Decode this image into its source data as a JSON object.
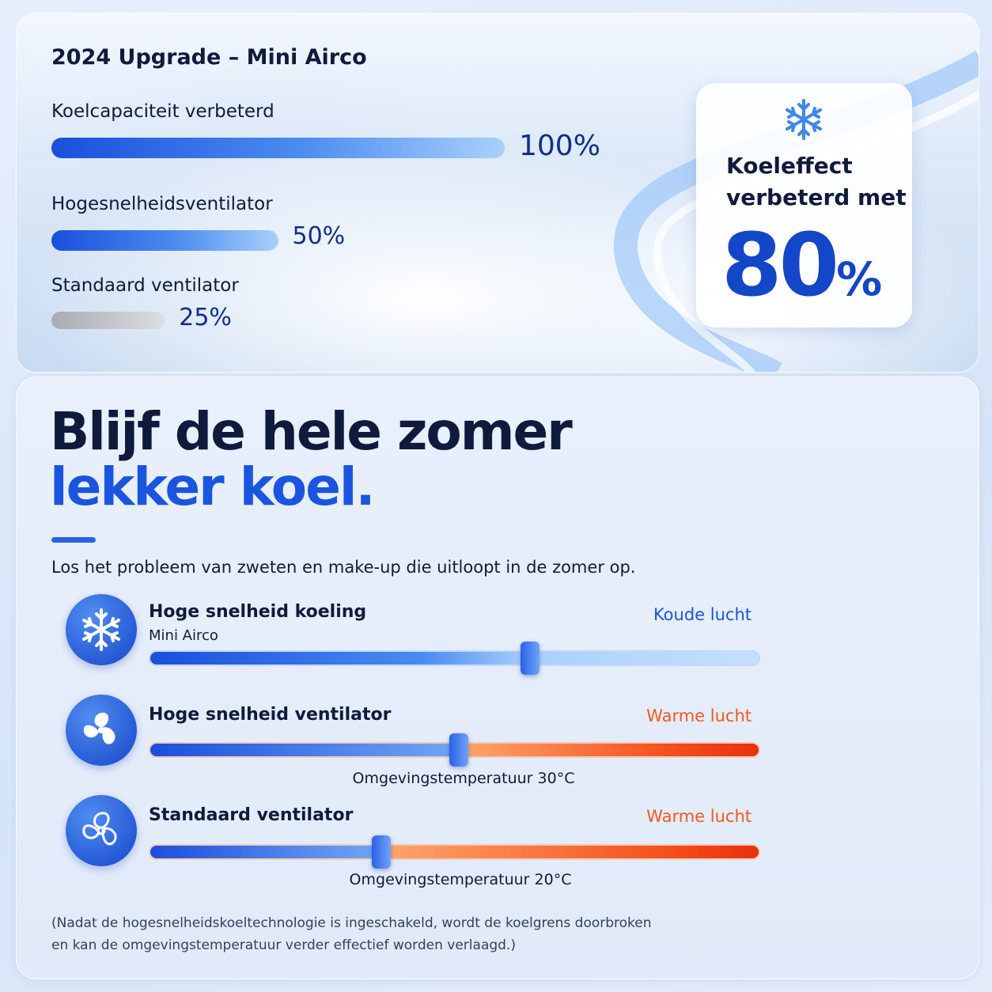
{
  "upgrade": {
    "title": "2024 Upgrade – Mini Airco",
    "bars": [
      {
        "label": "Koelcapaciteit verbeterd",
        "value": 100,
        "value_label": "100%",
        "color": "blue"
      },
      {
        "label": "Hogesnelheidsventilator",
        "value": 50,
        "value_label": "50%",
        "color": "blue"
      },
      {
        "label": "Standaard ventilator",
        "value": 25,
        "value_label": "25%",
        "color": "gray"
      }
    ],
    "badge": {
      "line1": "Koeleffect",
      "line2": "verbeterd met",
      "value": "80",
      "unit": "%"
    }
  },
  "comparison": {
    "headline": [
      "Blijf de hele zomer",
      "lekker koel."
    ],
    "subtitle": "Los het probleem van zweten en make-up die uitloopt in de zomer op.",
    "rows": [
      {
        "title": "Hoge snelheid koeling",
        "subtitle": "Mini Airco",
        "air": "Koude lucht"
      },
      {
        "title": "Hoge snelheid ventilator",
        "air": "Warme lucht",
        "note": "Omgevingstemperatuur 30°C"
      },
      {
        "title": "Standaard ventilator",
        "air": "Warme lucht",
        "note": "Omgevingstemperatuur 20°C"
      }
    ],
    "footnote": [
      "(Nadat de hogesnelheidskoeltechnologie is ingeschakeld, wordt de koelgrens doorbroken",
      "en kan de omgevingstemperatuur verder effectief worden verlaagd.)"
    ]
  }
}
